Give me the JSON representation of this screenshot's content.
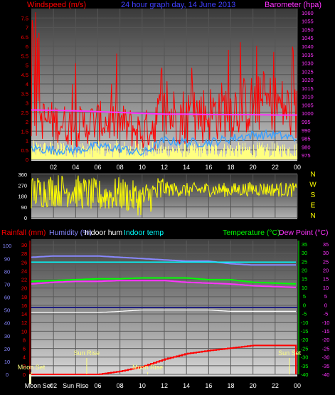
{
  "header": {
    "left_label": "Windspeed (m/s)",
    "title": "24 hour graph day, 14 June 2013",
    "right_label": "Barometer (hpa)"
  },
  "colors": {
    "windspeed": "#ff0000",
    "gust_bars": "#ffff80",
    "avg_wind": "#3aa0ff",
    "barometer": "#ff33ff",
    "direction": "#ffff00",
    "rainfall": "#ff0000",
    "humidity": "#8888ff",
    "indoor_hum": "#ffffff",
    "indoor_temp": "#00ffff",
    "temperature": "#00ff00",
    "dew_point": "#ff33ff",
    "daylight_band": "#ffffc0"
  },
  "x_labels": [
    "02",
    "04",
    "06",
    "08",
    "10",
    "12",
    "14",
    "16",
    "18",
    "20",
    "22",
    "00"
  ],
  "bottom_x_labels": [
    "Moon Set",
    "02",
    "Sun Rise",
    "06",
    "08",
    "10",
    "12",
    "14",
    "16",
    "18",
    "20",
    "22",
    "00"
  ],
  "panel3_legend": {
    "rainfall": "Rainfall (mm)",
    "humidity": "Humidity (%)",
    "indoor_hum": "Indoor hum",
    "indoor_temp": "Indoor temp",
    "temperature": "Temperature (°C)",
    "dew_point": "Dew Point (°C)"
  },
  "panel3_annotations": [
    {
      "text": "Moon Set",
      "hour": 0.0,
      "row": "lower"
    },
    {
      "text": "Sun Rise",
      "hour": 5.0,
      "row": "upper"
    },
    {
      "text": "Moon Rise",
      "hour": 10.5,
      "row": "lower"
    },
    {
      "text": "Sun Set",
      "hour": 23.3,
      "row": "upper"
    }
  ],
  "chart_data": [
    {
      "type": "line",
      "title": "24 hour graph day, 14 June 2013",
      "ylabel": "Windspeed (m/s)",
      "y2label": "Barometer (hpa)",
      "ylim": [
        0,
        8
      ],
      "y2lim": [
        972.5,
        1062.5
      ],
      "y_ticks": [
        "0",
        "0.5",
        "1",
        "1.5",
        "2",
        "2.5",
        "3",
        "3.5",
        "4",
        "4.5",
        "5",
        "5.5",
        "6",
        "6.5",
        "7",
        "7.5"
      ],
      "y2_ticks": [
        "975",
        "980",
        "985",
        "990",
        "995",
        "1000",
        "1005",
        "1010",
        "1015",
        "1020",
        "1025",
        "1030",
        "1035",
        "1040",
        "1045",
        "1050",
        "1055",
        "1060"
      ],
      "x": [
        0,
        2,
        4,
        6,
        8,
        10,
        12,
        14,
        16,
        18,
        20,
        22,
        24
      ],
      "series": [
        {
          "name": "Barometer (hpa)",
          "values": [
            1002.0,
            1001.8,
            1001.5,
            1001.0,
            1000.5,
            1000.0,
            999.5,
            999.5,
            999.3,
            999.2,
            999.2,
            999.0,
            999.0
          ]
        },
        {
          "name": "Windspeed (m/s)",
          "values": [
            2.0,
            1.8,
            1.5,
            1.8,
            1.7,
            1.2,
            2.1,
            2.0,
            2.1,
            2.4,
            2.6,
            2.7,
            2.0
          ]
        },
        {
          "name": "",
          "values": [
            0.6,
            0.5,
            0.5,
            0.7,
            0.6,
            0.3,
            1.0,
            0.9,
            0.9,
            1.1,
            1.3,
            1.3,
            1.1
          ]
        }
      ]
    },
    {
      "type": "line",
      "ylim": [
        0,
        360
      ],
      "y_ticks": [
        "0",
        "90",
        "180",
        "270",
        "360"
      ],
      "compass_labels": [
        "N",
        "W",
        "S",
        "E",
        "N"
      ],
      "x": [
        0,
        2,
        4,
        6,
        8,
        10,
        12,
        14,
        16,
        18,
        20,
        22,
        24
      ],
      "series": [
        {
          "name": "",
          "values": [
            210,
            230,
            220,
            180,
            200,
            150,
            240,
            230,
            235,
            230,
            240,
            235,
            230
          ]
        }
      ]
    },
    {
      "type": "line",
      "ylabel": "Rainfall (mm)",
      "left_ticks_outer": [
        "0",
        "10",
        "20",
        "30",
        "40",
        "50",
        "60",
        "70",
        "80",
        "90",
        "100"
      ],
      "left_ticks_inner": [
        "0",
        "2",
        "4",
        "6",
        "8",
        "10",
        "12",
        "14",
        "16",
        "18",
        "20",
        "22",
        "24",
        "26",
        "28",
        "30"
      ],
      "right_ticks_inner": [
        "-40",
        "-35",
        "-30",
        "-25",
        "-20",
        "-15",
        "-10",
        "-5",
        "0",
        "5",
        "10",
        "15",
        "20",
        "25",
        "30",
        "35"
      ],
      "right_ticks_outer": [
        "-40",
        "-35",
        "-30",
        "-25",
        "-20",
        "-15",
        "-10",
        "-5",
        "0",
        "5",
        "10",
        "15",
        "20",
        "25",
        "30",
        "35"
      ],
      "x": [
        0,
        2,
        4,
        6,
        8,
        10,
        12,
        14,
        16,
        18,
        20,
        22,
        24
      ],
      "series": [
        {
          "name": "Humidity (%)",
          "values": [
            91,
            92,
            92,
            92,
            91,
            90,
            89,
            88,
            88,
            86,
            85,
            85,
            85
          ]
        },
        {
          "name": "Indoor temp",
          "values": [
            26,
            26,
            26,
            26,
            26,
            26,
            26,
            26,
            26,
            26,
            26,
            26,
            26
          ]
        },
        {
          "name": "Temperature (°C)",
          "values": [
            13.5,
            14,
            14.5,
            15,
            15,
            15.5,
            15.5,
            15.5,
            14.5,
            14.5,
            13,
            12.5,
            12
          ]
        },
        {
          "name": "Dew Point (°C)",
          "values": [
            12,
            13,
            13.5,
            13.5,
            14,
            14,
            14,
            13,
            12.5,
            12,
            11,
            10.5,
            10
          ]
        },
        {
          "name": "Indoor hum",
          "values": [
            48,
            48,
            48,
            48,
            49,
            50,
            50,
            50,
            50,
            49,
            49,
            49,
            49
          ]
        },
        {
          "name": "Rainfall (mm)",
          "values": [
            0,
            0,
            0,
            0,
            0.7,
            1.8,
            3.5,
            4.8,
            5.5,
            6.1,
            6.7,
            6.7,
            0
          ]
        }
      ]
    }
  ]
}
